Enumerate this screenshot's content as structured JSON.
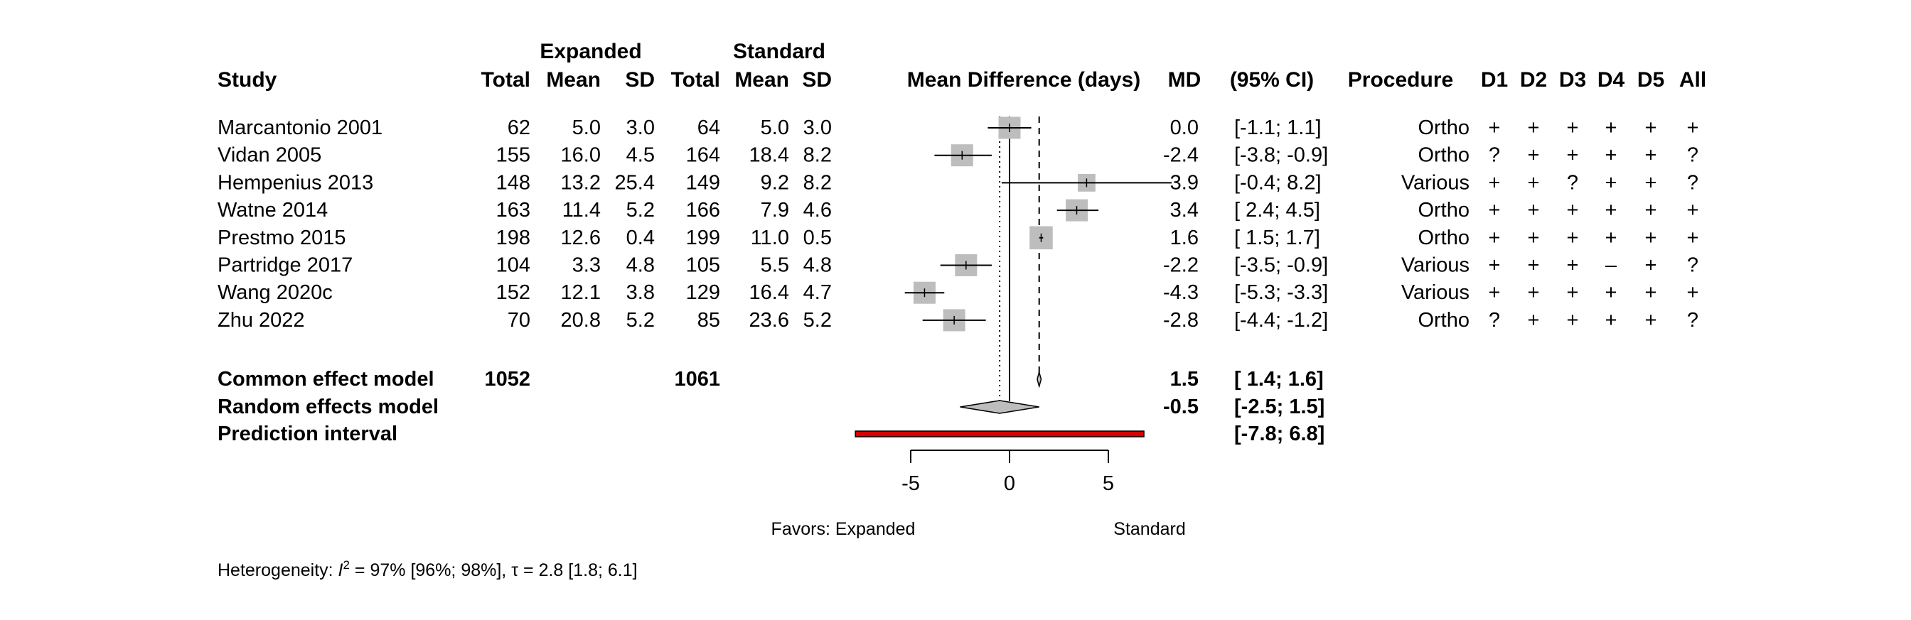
{
  "chart_data": {
    "type": "forest",
    "headers": {
      "group1": "Expanded",
      "group2": "Standard",
      "study": "Study",
      "total": "Total",
      "mean": "Mean",
      "sd": "SD",
      "plot": "Mean Difference (days)",
      "md": "MD",
      "ci": "(95% CI)",
      "procedure": "Procedure",
      "domains": [
        "D1",
        "D2",
        "D3",
        "D4",
        "D5",
        "All"
      ]
    },
    "studies": [
      {
        "study": "Marcantonio 2001",
        "e_total": "62",
        "e_mean": "5.0",
        "e_sd": "3.0",
        "s_total": "64",
        "s_mean": "5.0",
        "s_sd": "3.0",
        "md_text": "0.0",
        "ci_text": "[-1.1; 1.1]",
        "md": 0.0,
        "lower": -1.1,
        "upper": 1.1,
        "weight": 1.0,
        "procedure": "Ortho",
        "rob": [
          "+",
          "+",
          "+",
          "+",
          "+",
          "+"
        ]
      },
      {
        "study": "Vidan 2005",
        "e_total": "155",
        "e_mean": "16.0",
        "e_sd": "4.5",
        "s_total": "164",
        "s_mean": "18.4",
        "s_sd": "8.2",
        "md_text": "-2.4",
        "ci_text": "[-3.8; -0.9]",
        "md": -2.4,
        "lower": -3.8,
        "upper": -0.9,
        "weight": 1.0,
        "procedure": "Ortho",
        "rob": [
          "?",
          "+",
          "+",
          "+",
          "+",
          "?"
        ]
      },
      {
        "study": "Hempenius 2013",
        "e_total": "148",
        "e_mean": "13.2",
        "e_sd": "25.4",
        "s_total": "149",
        "s_mean": "9.2",
        "s_sd": "8.2",
        "md_text": "3.9",
        "ci_text": "[-0.4; 8.2]",
        "md": 3.9,
        "lower": -0.4,
        "upper": 8.2,
        "weight": 0.8,
        "procedure": "Various",
        "rob": [
          "+",
          "+",
          "?",
          "+",
          "+",
          "?"
        ]
      },
      {
        "study": "Watne 2014",
        "e_total": "163",
        "e_mean": "11.4",
        "e_sd": "5.2",
        "s_total": "166",
        "s_mean": "7.9",
        "s_sd": "4.6",
        "md_text": "3.4",
        "ci_text": "[ 2.4; 4.5]",
        "md": 3.4,
        "lower": 2.4,
        "upper": 4.5,
        "weight": 1.0,
        "procedure": "Ortho",
        "rob": [
          "+",
          "+",
          "+",
          "+",
          "+",
          "+"
        ]
      },
      {
        "study": "Prestmo 2015",
        "e_total": "198",
        "e_mean": "12.6",
        "e_sd": "0.4",
        "s_total": "199",
        "s_mean": "11.0",
        "s_sd": "0.5",
        "md_text": "1.6",
        "ci_text": "[ 1.5; 1.7]",
        "md": 1.6,
        "lower": 1.5,
        "upper": 1.7,
        "weight": 1.05,
        "procedure": "Ortho",
        "rob": [
          "+",
          "+",
          "+",
          "+",
          "+",
          "+"
        ]
      },
      {
        "study": "Partridge 2017",
        "e_total": "104",
        "e_mean": "3.3",
        "e_sd": "4.8",
        "s_total": "105",
        "s_mean": "5.5",
        "s_sd": "4.8",
        "md_text": "-2.2",
        "ci_text": "[-3.5; -0.9]",
        "md": -2.2,
        "lower": -3.5,
        "upper": -0.9,
        "weight": 1.0,
        "procedure": "Various",
        "rob": [
          "+",
          "+",
          "+",
          "–",
          "+",
          "?"
        ]
      },
      {
        "study": "Wang 2020c",
        "e_total": "152",
        "e_mean": "12.1",
        "e_sd": "3.8",
        "s_total": "129",
        "s_mean": "16.4",
        "s_sd": "4.7",
        "md_text": "-4.3",
        "ci_text": "[-5.3; -3.3]",
        "md": -4.3,
        "lower": -5.3,
        "upper": -3.3,
        "weight": 1.0,
        "procedure": "Various",
        "rob": [
          "+",
          "+",
          "+",
          "+",
          "+",
          "+"
        ]
      },
      {
        "study": "Zhu 2022",
        "e_total": "70",
        "e_mean": "20.8",
        "e_sd": "5.2",
        "s_total": "85",
        "s_mean": "23.6",
        "s_sd": "5.2",
        "md_text": "-2.8",
        "ci_text": "[-4.4; -1.2]",
        "md": -2.8,
        "lower": -4.4,
        "upper": -1.2,
        "weight": 1.0,
        "procedure": "Ortho",
        "rob": [
          "?",
          "+",
          "+",
          "+",
          "+",
          "?"
        ]
      }
    ],
    "common": {
      "label": "Common effect model",
      "e_total": "1052",
      "s_total": "1061",
      "md_text": "1.5",
      "ci_text": "[ 1.4; 1.6]",
      "md": 1.5,
      "lower": 1.4,
      "upper": 1.6
    },
    "random": {
      "label": "Random effects model",
      "md_text": "-0.5",
      "ci_text": "[-2.5; 1.5]",
      "md": -0.5,
      "lower": -2.5,
      "upper": 1.5
    },
    "prediction": {
      "label": "Prediction interval",
      "ci_text": "[-7.8; 6.8]",
      "lower": -7.8,
      "upper": 6.8
    },
    "xaxis": {
      "ticks": [
        -5,
        0,
        5
      ],
      "tick_labels": [
        "-5",
        "0",
        "5"
      ],
      "range": [
        -5,
        5
      ],
      "null_value": 0
    },
    "favors": {
      "left": "Favors: Expanded",
      "right": "Standard"
    },
    "heterogeneity": {
      "prefix": "Heterogeneity: ",
      "i_letter": "I",
      "i_sup": "2",
      "i2_text": " = 97% [96%; 98%], ",
      "tau_symbol": "τ",
      "tau_text": " = 2.8 [1.8; 6.1]"
    },
    "colors": {
      "box": "#bdbdbd",
      "diamond": "#bdbdbd",
      "prediction": "#d40000",
      "line": "#000000"
    }
  }
}
